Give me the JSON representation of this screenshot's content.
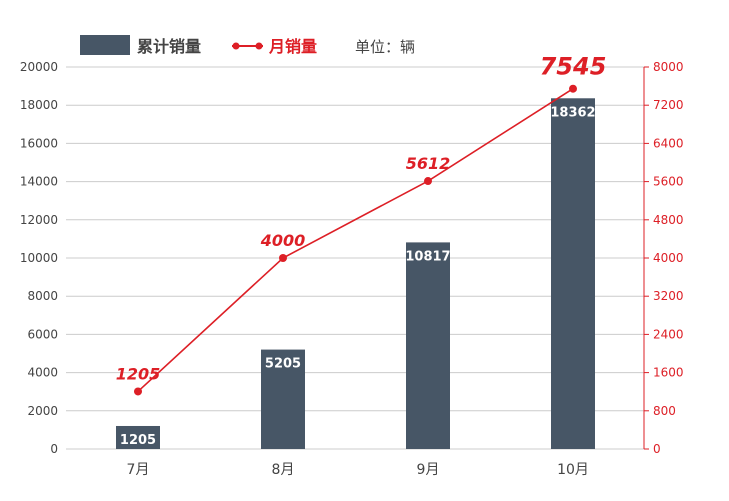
{
  "chart_data": {
    "type": "bar",
    "categories": [
      "7月",
      "8月",
      "9月",
      "10月"
    ],
    "series": [
      {
        "name": "累计销量",
        "type": "bar",
        "axis": "left",
        "values": [
          1205,
          5205,
          10817,
          18362
        ],
        "color": "#475666"
      },
      {
        "name": "月销量",
        "type": "line",
        "axis": "right",
        "values": [
          1205,
          4000,
          5612,
          7545
        ],
        "color": "#dd1f26"
      }
    ],
    "ylim": [
      0,
      20000
    ],
    "y2lim": [
      0,
      8000
    ],
    "yticks": [
      "0",
      "2000",
      "4000",
      "6000",
      "8000",
      "10000",
      "12000",
      "14000",
      "16000",
      "18000",
      "20000"
    ],
    "y2ticks": [
      "0",
      "800",
      "1600",
      "2400",
      "3200",
      "4000",
      "4800",
      "5600",
      "6400",
      "7200",
      "8000"
    ],
    "unit_label": "单位：辆",
    "grid": true,
    "legend_position": "top-left"
  },
  "colors": {
    "bar": "#475666",
    "line": "#dd1f26",
    "grid": "#cccccc",
    "text": "#444444"
  }
}
